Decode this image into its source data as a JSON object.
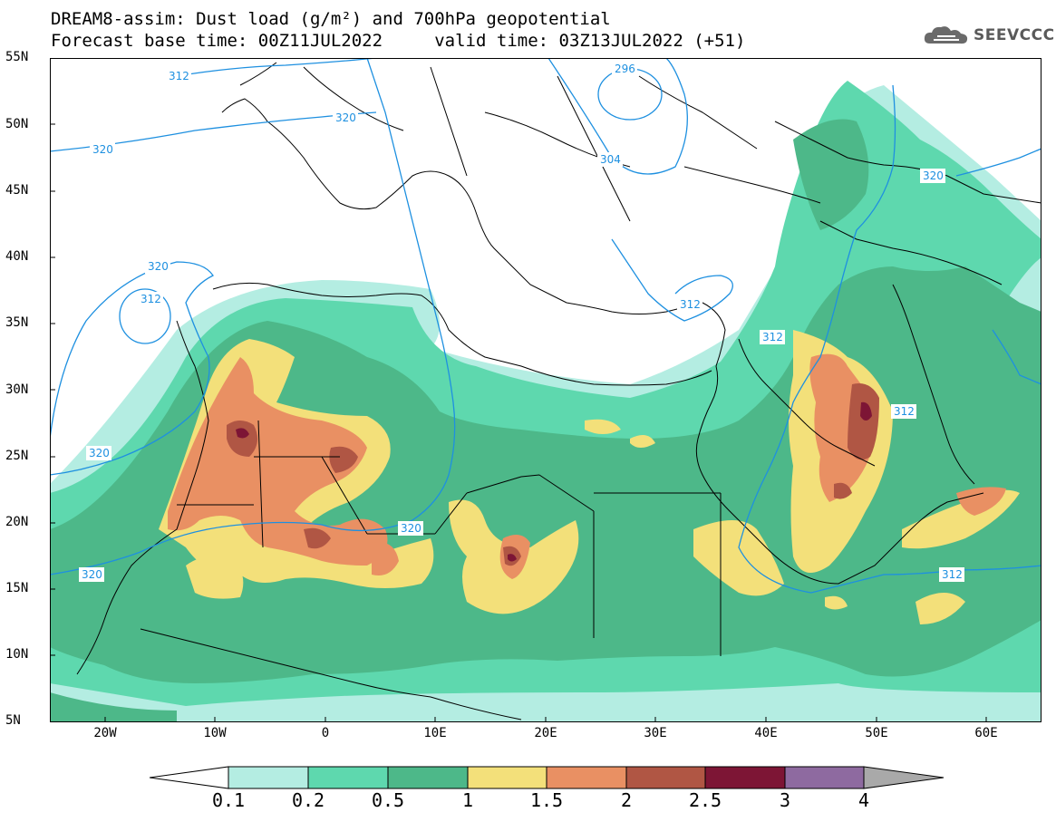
{
  "title_line1": "DREAM8-assim: Dust load (g/m²) and 700hPa geopotential",
  "title_line2": "Forecast base time: 00Z11JUL2022     valid time: 03Z13JUL2022 (+51)",
  "logo_text": "SEEVCCC",
  "lat_labels": [
    "55N",
    "50N",
    "45N",
    "40N",
    "35N",
    "30N",
    "25N",
    "20N",
    "15N",
    "10N",
    "5N"
  ],
  "lon_labels": [
    "20W",
    "10W",
    "0",
    "10E",
    "20E",
    "30E",
    "40E",
    "50E",
    "60E"
  ],
  "contour_labels": [
    "312",
    "320",
    "320",
    "296",
    "304",
    "320",
    "320",
    "312",
    "320",
    "320",
    "320",
    "312",
    "312",
    "312",
    "312"
  ],
  "colorbar": {
    "labels": [
      "0.1",
      "0.2",
      "0.5",
      "1",
      "1.5",
      "2",
      "2.5",
      "3",
      "4"
    ],
    "colors": [
      "#b4ede2",
      "#5ed8ae",
      "#4db889",
      "#f3e07a",
      "#e99063",
      "#b05644",
      "#7d1535",
      "#8e6aa0"
    ],
    "under_color": "#ffffff",
    "over_color": "#a9a9a9"
  },
  "map_colors": {
    "land_border": "#000000",
    "contour": "#1e90e0",
    "background": "#ffffff"
  }
}
